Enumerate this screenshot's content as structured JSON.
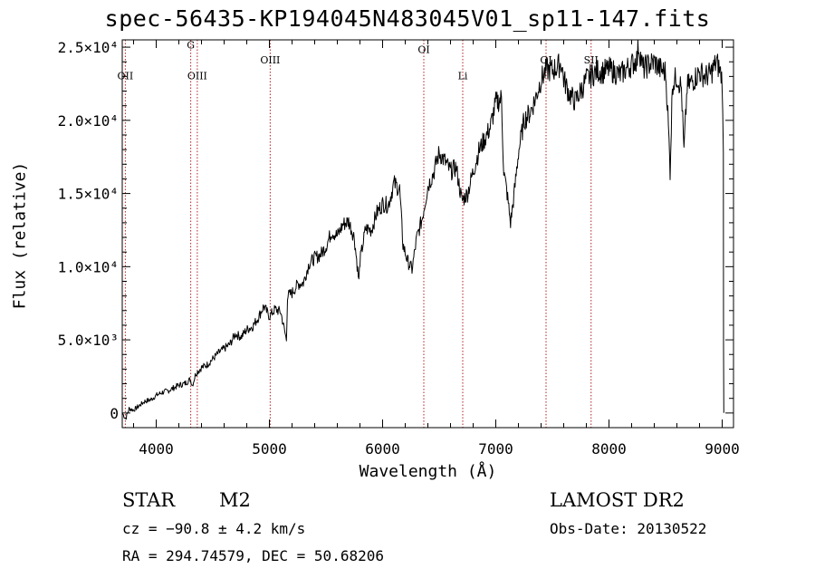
{
  "chart_data": {
    "type": "line",
    "title": "spec-56435-KP194045N483045V01_sp11-147.fits",
    "xlabel": "Wavelength (Å)",
    "ylabel": "Flux (relative)",
    "xlim": [
      3700,
      9100
    ],
    "ylim": [
      -1000,
      25500
    ],
    "x_ticks": [
      4000,
      5000,
      6000,
      7000,
      8000,
      9000
    ],
    "y_ticks": [
      {
        "value": 0,
        "label": "0"
      },
      {
        "value": 5000,
        "label": "5.0×10³"
      },
      {
        "value": 10000,
        "label": "1.0×10⁴"
      },
      {
        "value": 15000,
        "label": "1.5×10⁴"
      },
      {
        "value": 20000,
        "label": "2.0×10⁴"
      },
      {
        "value": 25000,
        "label": "2.5×10⁴"
      }
    ],
    "line_color": "#000000",
    "marker_color": "#b22222",
    "spectral_lines": [
      {
        "label": "OII",
        "x": 3727,
        "label_y": 22800
      },
      {
        "label": "G",
        "x": 4305,
        "label_y": 24900
      },
      {
        "label": "OIII",
        "x": 4363,
        "label_y": 22800
      },
      {
        "label": "OIII",
        "x": 5007,
        "label_y": 23900
      },
      {
        "label": "OI",
        "x": 6364,
        "label_y": 24600
      },
      {
        "label": "Li",
        "x": 6708,
        "label_y": 22800
      },
      {
        "label": "OI",
        "x": 7444,
        "label_y": 23900
      },
      {
        "label": "SII",
        "x": 7842,
        "label_y": 23900
      }
    ],
    "series": [
      {
        "values": [
          [
            3700,
            0
          ],
          [
            3730,
            -400
          ],
          [
            3760,
            300
          ],
          [
            3800,
            200
          ],
          [
            3850,
            500
          ],
          [
            3900,
            800
          ],
          [
            3950,
            900
          ],
          [
            4000,
            1200
          ],
          [
            4050,
            1400
          ],
          [
            4100,
            1500
          ],
          [
            4150,
            1700
          ],
          [
            4200,
            1900
          ],
          [
            4250,
            2000
          ],
          [
            4300,
            2300
          ],
          [
            4320,
            1900
          ],
          [
            4350,
            2700
          ],
          [
            4400,
            3100
          ],
          [
            4450,
            3300
          ],
          [
            4500,
            3700
          ],
          [
            4550,
            4100
          ],
          [
            4600,
            4400
          ],
          [
            4650,
            4700
          ],
          [
            4700,
            5400
          ],
          [
            4750,
            5200
          ],
          [
            4800,
            5700
          ],
          [
            4850,
            5900
          ],
          [
            4900,
            6500
          ],
          [
            4950,
            7300
          ],
          [
            5000,
            6600
          ],
          [
            5050,
            7100
          ],
          [
            5100,
            6900
          ],
          [
            5150,
            5000
          ],
          [
            5160,
            8000
          ],
          [
            5200,
            8200
          ],
          [
            5250,
            8800
          ],
          [
            5300,
            8900
          ],
          [
            5350,
            10200
          ],
          [
            5400,
            10600
          ],
          [
            5450,
            10800
          ],
          [
            5500,
            11400
          ],
          [
            5550,
            12400
          ],
          [
            5600,
            12100
          ],
          [
            5650,
            12900
          ],
          [
            5700,
            13100
          ],
          [
            5750,
            12000
          ],
          [
            5790,
            9000
          ],
          [
            5800,
            10400
          ],
          [
            5850,
            12600
          ],
          [
            5900,
            12500
          ],
          [
            5950,
            13700
          ],
          [
            6000,
            14300
          ],
          [
            6050,
            14200
          ],
          [
            6100,
            15700
          ],
          [
            6150,
            15300
          ],
          [
            6180,
            11500
          ],
          [
            6220,
            10400
          ],
          [
            6260,
            9800
          ],
          [
            6300,
            11900
          ],
          [
            6350,
            13300
          ],
          [
            6400,
            15500
          ],
          [
            6450,
            16400
          ],
          [
            6500,
            17800
          ],
          [
            6550,
            17200
          ],
          [
            6600,
            16500
          ],
          [
            6650,
            16800
          ],
          [
            6700,
            14500
          ],
          [
            6750,
            15000
          ],
          [
            6800,
            16500
          ],
          [
            6850,
            17900
          ],
          [
            6900,
            18700
          ],
          [
            6950,
            19500
          ],
          [
            7000,
            21200
          ],
          [
            7050,
            21500
          ],
          [
            7070,
            16500
          ],
          [
            7100,
            15000
          ],
          [
            7130,
            13000
          ],
          [
            7160,
            14800
          ],
          [
            7200,
            17800
          ],
          [
            7250,
            20000
          ],
          [
            7300,
            20500
          ],
          [
            7350,
            21500
          ],
          [
            7400,
            22800
          ],
          [
            7450,
            23500
          ],
          [
            7500,
            23400
          ],
          [
            7550,
            23700
          ],
          [
            7580,
            23900
          ],
          [
            7600,
            22800
          ],
          [
            7650,
            21800
          ],
          [
            7700,
            21300
          ],
          [
            7750,
            22000
          ],
          [
            7800,
            22800
          ],
          [
            7850,
            23100
          ],
          [
            7900,
            23400
          ],
          [
            7950,
            23300
          ],
          [
            8000,
            23500
          ],
          [
            8050,
            23300
          ],
          [
            8100,
            23100
          ],
          [
            8150,
            23500
          ],
          [
            8200,
            23800
          ],
          [
            8250,
            24200
          ],
          [
            8260,
            25200
          ],
          [
            8300,
            23500
          ],
          [
            8350,
            23800
          ],
          [
            8400,
            24000
          ],
          [
            8450,
            23500
          ],
          [
            8500,
            23300
          ],
          [
            8520,
            20500
          ],
          [
            8540,
            16500
          ],
          [
            8560,
            22500
          ],
          [
            8600,
            23000
          ],
          [
            8640,
            22200
          ],
          [
            8662,
            17800
          ],
          [
            8690,
            22300
          ],
          [
            8750,
            22800
          ],
          [
            8800,
            23300
          ],
          [
            8850,
            23000
          ],
          [
            8900,
            23200
          ],
          [
            8950,
            24000
          ],
          [
            8980,
            23400
          ],
          [
            9000,
            22800
          ],
          [
            9010,
            17500
          ],
          [
            9012,
            4800
          ],
          [
            9014,
            0
          ]
        ]
      }
    ]
  },
  "object_info": {
    "class_label": "STAR",
    "subclass": "M2",
    "redshift_line": "cz = −90.8 ± 4.2 km/s",
    "coords_line": "RA = 294.74579, DEC =  50.68206",
    "survey": "LAMOST DR2",
    "obs_date": "Obs-Date: 20130522"
  }
}
